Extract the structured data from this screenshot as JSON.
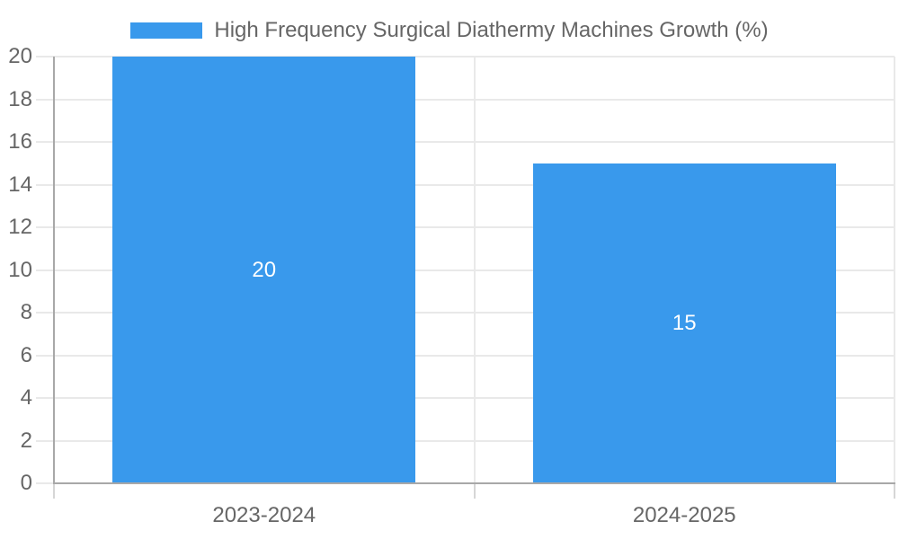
{
  "legend": {
    "label": "High Frequency Surgical Diathermy Machines Growth (%)"
  },
  "colors": {
    "bar": "#3999EC",
    "grid": "#e9e9e9",
    "tick": "#d6d6d6",
    "axis": "#a8a8a8",
    "axis_label": "#666666",
    "value_label": "#ffffff",
    "background": "#ffffff"
  },
  "chart_data": {
    "type": "bar",
    "categories": [
      "2023-2024",
      "2024-2025"
    ],
    "series": [
      {
        "name": "High Frequency Surgical Diathermy Machines Growth (%)",
        "values": [
          20,
          15
        ]
      }
    ],
    "title": "",
    "xlabel": "",
    "ylabel": "",
    "ylim": [
      0,
      20
    ],
    "yticks": [
      0,
      2,
      4,
      6,
      8,
      10,
      12,
      14,
      16,
      18,
      20
    ],
    "grid": true,
    "legend_position": "top",
    "bar_value_labels": [
      20,
      15
    ]
  }
}
